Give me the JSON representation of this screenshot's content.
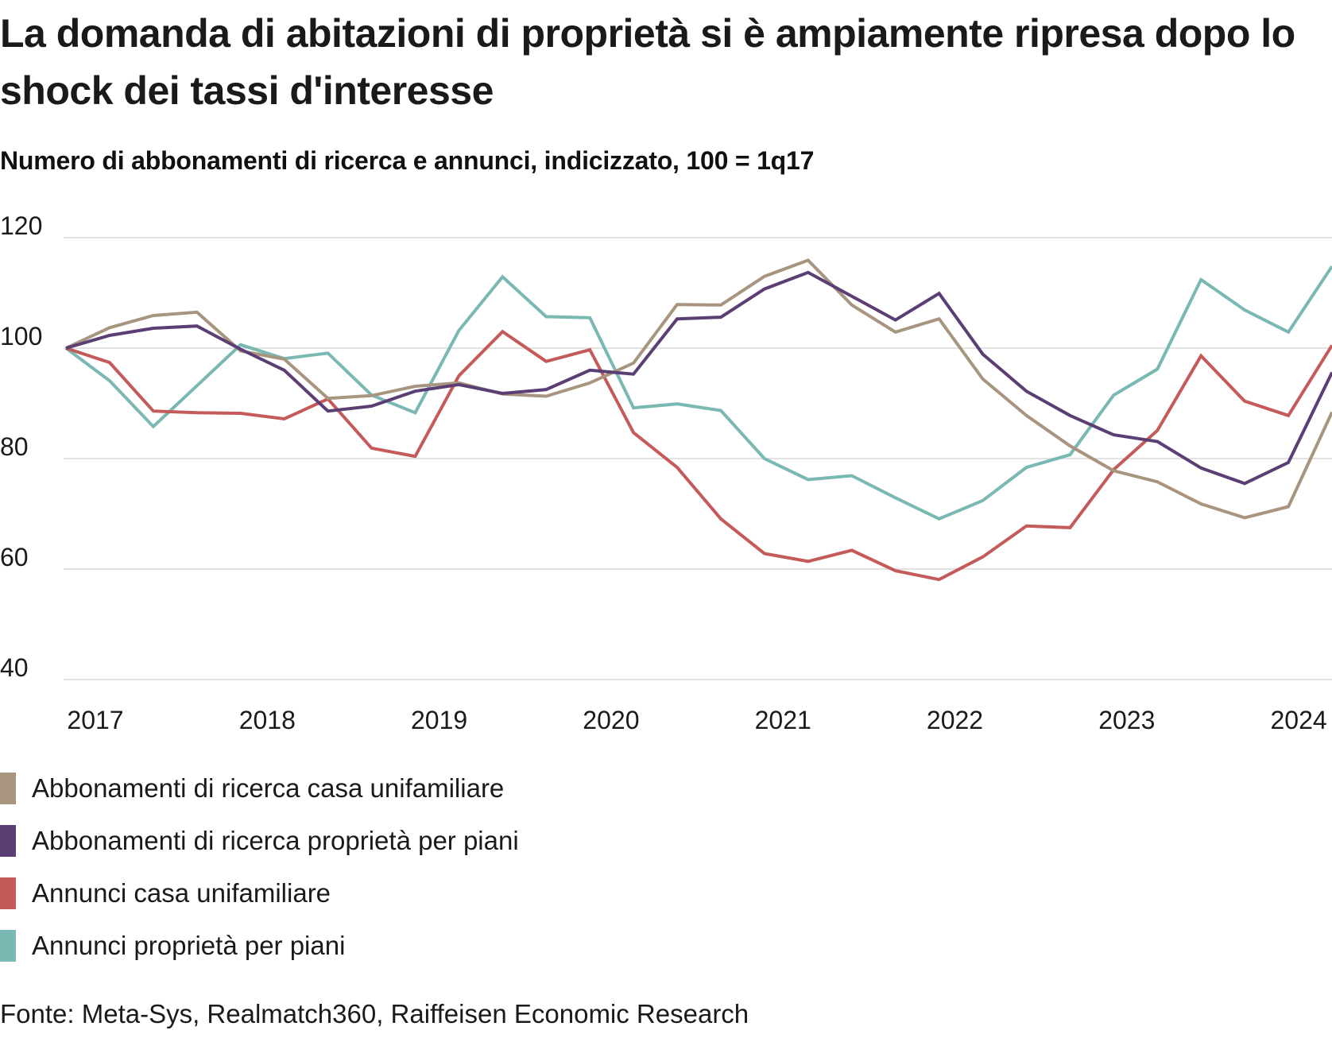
{
  "header": {
    "title": "La domanda di abitazioni di proprietà si è ampiamente ripresa dopo lo shock dei tassi d'interesse",
    "subtitle": "Numero di abbonamenti di ricerca e annunci, indicizzato, 100 = 1q17"
  },
  "footer": {
    "source": "Fonte: Meta-Sys, Realmatch360, Raiffeisen Economic Research"
  },
  "chart_data": {
    "type": "line",
    "title": "La domanda di abitazioni di proprietà si è ampiamente ripresa dopo lo shock dei tassi d'interesse",
    "subtitle": "Numero di abbonamenti di ricerca e annunci, indicizzato, 100 = 1q17",
    "xlabel": "",
    "ylabel": "",
    "x": [
      "2017Q1",
      "2017Q2",
      "2017Q3",
      "2017Q4",
      "2018Q1",
      "2018Q2",
      "2018Q3",
      "2018Q4",
      "2019Q1",
      "2019Q2",
      "2019Q3",
      "2019Q4",
      "2020Q1",
      "2020Q2",
      "2020Q3",
      "2020Q4",
      "2021Q1",
      "2021Q2",
      "2021Q3",
      "2021Q4",
      "2022Q1",
      "2022Q2",
      "2022Q3",
      "2022Q4",
      "2023Q1",
      "2023Q2",
      "2023Q3",
      "2023Q4",
      "2024Q1",
      "2024Q2"
    ],
    "x_tick_labels": [
      "2017",
      "2018",
      "2019",
      "2020",
      "2021",
      "2022",
      "2023",
      "2024"
    ],
    "y_ticks": [
      40,
      60,
      80,
      100,
      120
    ],
    "ylim": [
      40,
      120
    ],
    "grid": "horizontal",
    "legend_position": "bottom",
    "series": [
      {
        "name": "Abbonamenti di ricerca casa unifamiliare",
        "color": "#a8957f",
        "values": [
          100,
          103.7,
          105.9,
          106.5,
          99.5,
          98.0,
          90.9,
          91.4,
          93.1,
          93.7,
          91.7,
          91.3,
          93.7,
          97.3,
          107.9,
          107.8,
          113.0,
          115.9,
          107.8,
          102.9,
          105.3,
          94.4,
          87.8,
          82.3,
          77.8,
          75.8,
          71.8,
          69.3,
          71.3,
          88.4
        ]
      },
      {
        "name": "Abbonamenti di ricerca proprietà per piani",
        "color": "#5b3f74",
        "values": [
          100,
          102.3,
          103.6,
          104.0,
          99.8,
          96.0,
          88.6,
          89.5,
          92.2,
          93.4,
          91.8,
          92.5,
          96.0,
          95.3,
          105.3,
          105.6,
          110.7,
          113.7,
          109.4,
          105.1,
          109.9,
          98.9,
          92.2,
          87.8,
          84.3,
          83.1,
          78.3,
          75.5,
          79.3,
          95.6
        ]
      },
      {
        "name": "Annunci casa unifamiliare",
        "color": "#c45a5a",
        "values": [
          100,
          97.4,
          88.6,
          88.3,
          88.2,
          87.2,
          90.8,
          81.9,
          80.4,
          95.0,
          103.0,
          97.6,
          99.7,
          84.7,
          78.4,
          69.1,
          62.8,
          61.4,
          63.4,
          59.7,
          58.1,
          62.2,
          67.8,
          67.5,
          78.0,
          85.1,
          98.6,
          90.4,
          87.8,
          100.5
        ]
      },
      {
        "name": "Annunci proprietà per piani",
        "color": "#7ab8b3",
        "values": [
          100,
          94.1,
          85.8,
          93.2,
          100.6,
          98.1,
          99.1,
          91.5,
          88.3,
          103.2,
          112.9,
          105.7,
          105.5,
          89.2,
          89.9,
          88.7,
          80.0,
          76.2,
          76.9,
          72.9,
          69.1,
          72.4,
          78.4,
          80.7,
          91.5,
          96.2,
          112.4,
          106.9,
          102.9,
          114.8
        ]
      }
    ]
  }
}
